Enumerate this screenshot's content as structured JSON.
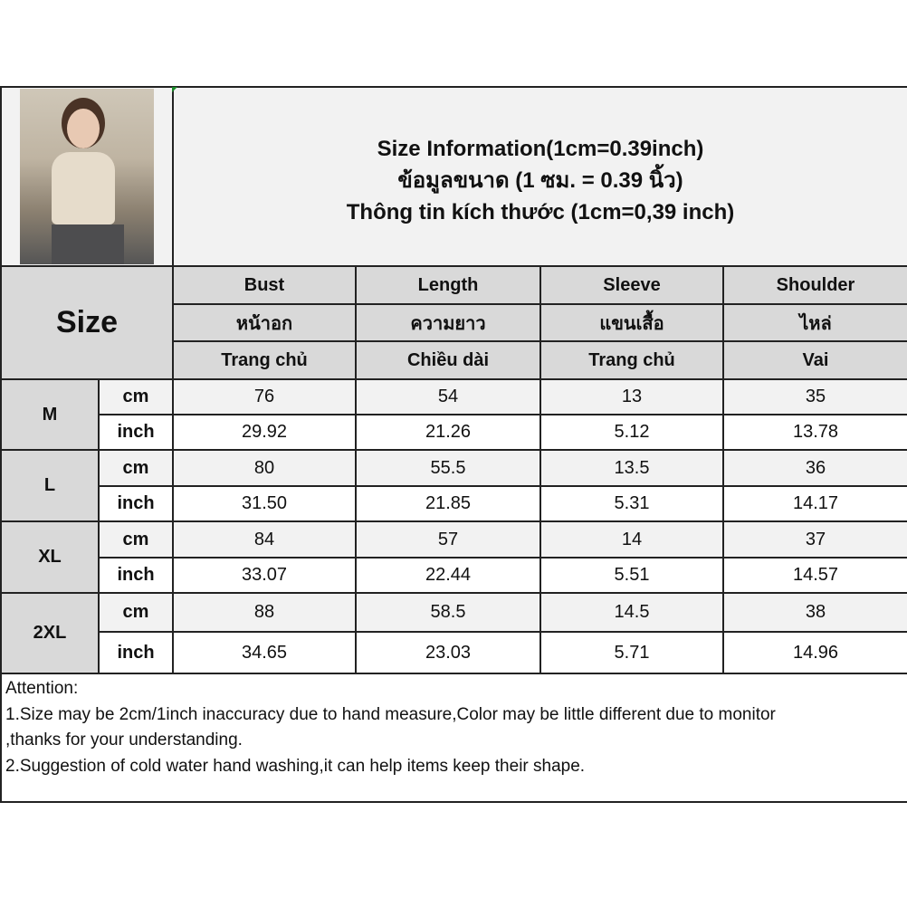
{
  "title_lines": [
    "Size Information(1cm=0.39inch)",
    "ข้อมูลขนาด (1 ซม. = 0.39 นิ้ว)",
    "Thông tin kích thước (1cm=0,39 inch)"
  ],
  "size_label": "Size",
  "columns": [
    {
      "en": "Bust",
      "th": "หน้าอก",
      "vi": "Trang chủ"
    },
    {
      "en": "Length",
      "th": "ความยาว",
      "vi": "Chiều dài"
    },
    {
      "en": "Sleeve",
      "th": "แขนเสื้อ",
      "vi": "Trang chủ"
    },
    {
      "en": "Shoulder",
      "th": "ไหล่",
      "vi": "Vai"
    }
  ],
  "units": {
    "cm": "cm",
    "inch": "inch"
  },
  "rows": [
    {
      "size": "M",
      "cm": [
        "76",
        "54",
        "13",
        "35"
      ],
      "inch": [
        "29.92",
        "21.26",
        "5.12",
        "13.78"
      ]
    },
    {
      "size": "L",
      "cm": [
        "80",
        "55.5",
        "13.5",
        "36"
      ],
      "inch": [
        "31.50",
        "21.85",
        "5.31",
        "14.17"
      ]
    },
    {
      "size": "XL",
      "cm": [
        "84",
        "57",
        "14",
        "37"
      ],
      "inch": [
        "33.07",
        "22.44",
        "5.51",
        "14.57"
      ]
    },
    {
      "size": "2XL",
      "cm": [
        "88",
        "58.5",
        "14.5",
        "38"
      ],
      "inch": [
        "34.65",
        "23.03",
        "5.71",
        "14.96"
      ]
    }
  ],
  "attention": [
    "Attention:",
    "1.Size may be 2cm/1inch inaccuracy due to hand measure,Color may be little different due to monitor",
    ",thanks for your understanding.",
    "2.Suggestion of cold water hand washing,it can help items keep their shape."
  ]
}
